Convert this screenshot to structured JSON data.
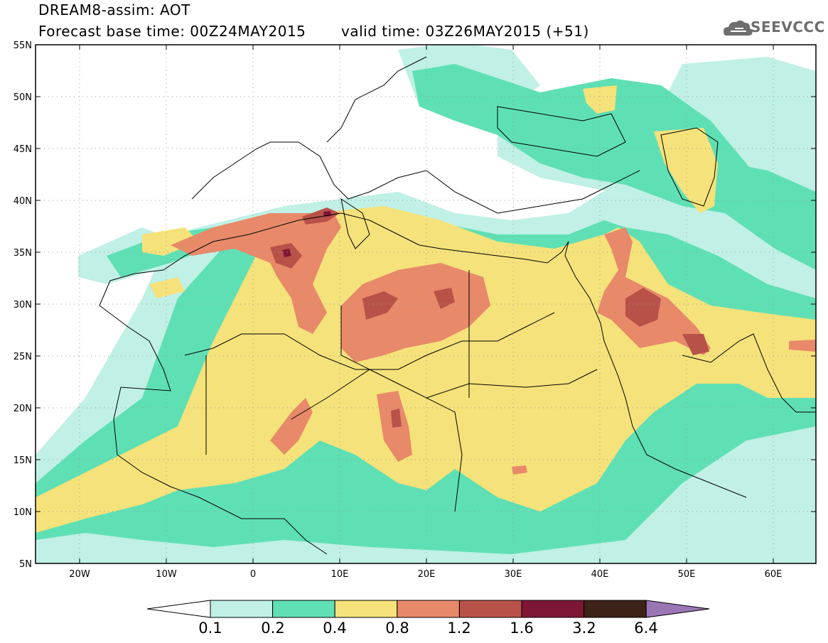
{
  "header": {
    "title": "DREAM8-assim: AOT",
    "base_time": "Forecast base time: 00Z24MAY2015",
    "valid_time": "valid time: 03Z26MAY2015 (+51)"
  },
  "logo": {
    "text": "SEEVCCC",
    "icon": "cloud-icon"
  },
  "map": {
    "lon_ticks": [
      "20W",
      "10W",
      "0",
      "10E",
      "20E",
      "30E",
      "40E",
      "50E",
      "60E"
    ],
    "lat_ticks": [
      "55N",
      "50N",
      "45N",
      "40N",
      "35N",
      "30N",
      "25N",
      "20N",
      "15N",
      "10N",
      "5N"
    ],
    "lon_range": [
      -25,
      65
    ],
    "lat_range": [
      5,
      55
    ]
  },
  "colorbar": {
    "labels": [
      "0.1",
      "0.2",
      "0.4",
      "0.8",
      "1.2",
      "1.6",
      "3.2",
      "6.4"
    ],
    "colors": [
      "#ffffff",
      "#c0f0e6",
      "#5fe0b4",
      "#f5e27a",
      "#e8896a",
      "#b85248",
      "#7e1635",
      "#3d2217",
      "#9b76b4"
    ]
  }
}
